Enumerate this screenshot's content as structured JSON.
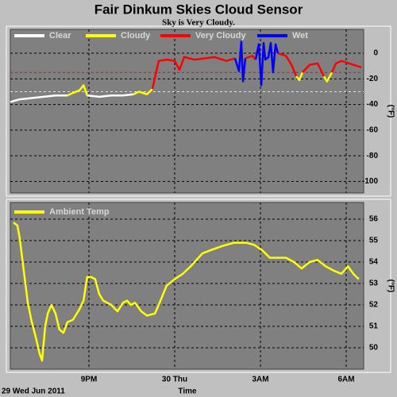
{
  "chart_data": [
    {
      "type": "line",
      "title": "Fair Dinkum Skies Cloud Sensor",
      "subtitle": "Sky is Very Cloudy.",
      "ylabel": "(°F)",
      "x": [
        18.25,
        18.58,
        19.0,
        19.42,
        19.83,
        20.25,
        20.44,
        20.67,
        20.81,
        20.94,
        21.36,
        21.78,
        22.19,
        22.56,
        22.75,
        23.03,
        23.22,
        23.33,
        23.44,
        23.72,
        24.0,
        24.17,
        24.33,
        24.69,
        25.06,
        25.39,
        25.81,
        26.11,
        26.25,
        26.33,
        26.39,
        26.47,
        26.72,
        26.83,
        26.94,
        27.03,
        27.11,
        27.17,
        27.28,
        27.36,
        27.44,
        27.53,
        27.61,
        27.89,
        28.11,
        28.25,
        28.36,
        28.47,
        28.72,
        29.0,
        29.22,
        29.33,
        29.5,
        29.64,
        29.83,
        30.11,
        30.39,
        30.53
      ],
      "series": [
        {
          "name": "Clear",
          "color": "#ffffff",
          "values": [
            -38,
            -36,
            -35,
            -34,
            -33,
            -33,
            null,
            null,
            null,
            -33,
            -34,
            -33,
            -33,
            -32,
            null,
            null,
            null,
            null,
            null,
            null,
            null,
            null,
            null,
            null,
            null,
            null,
            null,
            null,
            null,
            null,
            null,
            null,
            null,
            null,
            null,
            null,
            null,
            null,
            null,
            null,
            null,
            null,
            null,
            null,
            null,
            null,
            null,
            null,
            null,
            null,
            null,
            null,
            null,
            null,
            null,
            null,
            null,
            null
          ]
        },
        {
          "name": "Cloudy",
          "color": "#ffff00",
          "values": [
            null,
            null,
            null,
            null,
            null,
            -33,
            -31,
            -29,
            -25,
            -33,
            null,
            null,
            null,
            -32,
            -30,
            -32,
            -28,
            null,
            null,
            null,
            null,
            null,
            null,
            null,
            null,
            null,
            null,
            null,
            null,
            null,
            null,
            null,
            null,
            null,
            null,
            null,
            null,
            null,
            null,
            null,
            null,
            null,
            null,
            null,
            null,
            -18,
            -21,
            -15,
            null,
            null,
            -18,
            -22,
            -15,
            null,
            null,
            null,
            null,
            null
          ]
        },
        {
          "name": "Very Cloudy",
          "color": "#ff0000",
          "values": [
            null,
            null,
            null,
            null,
            null,
            null,
            null,
            null,
            null,
            null,
            null,
            null,
            null,
            null,
            null,
            null,
            -28,
            -17,
            -6,
            -5,
            -6,
            -13,
            -3,
            -5,
            -4,
            -3,
            -6,
            -4,
            null,
            null,
            null,
            -4,
            -2,
            -5,
            null,
            null,
            null,
            -5,
            -3,
            null,
            null,
            null,
            0,
            -2,
            -10,
            -18,
            null,
            -15,
            -9,
            -8,
            -18,
            null,
            -15,
            -8,
            -6,
            -8,
            -10,
            -11
          ]
        },
        {
          "name": "Wet",
          "color": "#0000ff",
          "values": [
            null,
            null,
            null,
            null,
            null,
            null,
            null,
            null,
            null,
            null,
            null,
            null,
            null,
            null,
            null,
            null,
            null,
            null,
            null,
            null,
            null,
            null,
            null,
            null,
            null,
            null,
            null,
            -4,
            -14,
            9,
            -22,
            -4,
            null,
            -5,
            7,
            -25,
            8,
            -5,
            -3,
            8,
            -15,
            7,
            0,
            null,
            null,
            null,
            null,
            null,
            null,
            null,
            null,
            null,
            null,
            null,
            null,
            null,
            null,
            null
          ]
        }
      ],
      "reference_lines": [
        {
          "value": -15,
          "color": "#ff0000"
        },
        {
          "value": -30,
          "color": "#ffff00"
        }
      ],
      "xlim": [
        18.25,
        30.61
      ],
      "xticks": [
        21,
        24,
        27,
        30
      ],
      "ylim": [
        -109,
        18.6
      ],
      "yticks": [
        0,
        -20,
        -40,
        -60,
        -80,
        -100
      ],
      "grid": true
    },
    {
      "type": "line",
      "ylabel": "(°F)",
      "xlabel": "Time",
      "date_label": "29 Wed Jun 2011",
      "x": [
        18.36,
        18.5,
        18.58,
        18.72,
        18.86,
        19.0,
        19.14,
        19.28,
        19.36,
        19.47,
        19.56,
        19.69,
        19.83,
        19.97,
        20.11,
        20.25,
        20.44,
        20.67,
        20.81,
        20.94,
        21.08,
        21.22,
        21.36,
        21.5,
        21.78,
        22.0,
        22.19,
        22.33,
        22.47,
        22.61,
        22.83,
        23.03,
        23.31,
        23.44,
        23.72,
        24.0,
        24.28,
        24.56,
        24.97,
        25.25,
        25.67,
        26.08,
        26.5,
        26.78,
        27.06,
        27.33,
        27.61,
        27.89,
        28.17,
        28.44,
        28.72,
        29.0,
        29.28,
        29.56,
        29.83,
        30.06,
        30.25,
        30.44
      ],
      "series": [
        {
          "name": "Ambient Temp",
          "color": "#ffff00",
          "values": [
            55.85,
            55.7,
            55.1,
            53.6,
            52.1,
            51.2,
            50.5,
            49.7,
            49.4,
            51.0,
            51.6,
            52.0,
            51.6,
            50.85,
            50.7,
            51.2,
            51.3,
            51.8,
            52.2,
            53.3,
            53.3,
            53.2,
            52.5,
            52.2,
            52.0,
            51.7,
            52.1,
            52.2,
            52.0,
            52.1,
            51.7,
            51.5,
            51.6,
            52.0,
            52.9,
            53.2,
            53.45,
            53.8,
            54.4,
            54.55,
            54.75,
            54.9,
            54.9,
            54.8,
            54.55,
            54.2,
            54.2,
            54.2,
            54.0,
            53.7,
            54.0,
            54.1,
            53.8,
            53.6,
            53.45,
            53.8,
            53.45,
            53.2
          ]
        }
      ],
      "xlim": [
        18.25,
        30.61
      ],
      "xticks": [
        {
          "value": 21,
          "label": "9PM"
        },
        {
          "value": 24,
          "label": "30 Thu"
        },
        {
          "value": 27,
          "label": "3AM"
        },
        {
          "value": 30,
          "label": "6AM"
        }
      ],
      "ylim": [
        49,
        56.78
      ],
      "yticks": [
        50,
        51,
        52,
        53,
        54,
        55,
        56
      ],
      "grid": true
    }
  ]
}
